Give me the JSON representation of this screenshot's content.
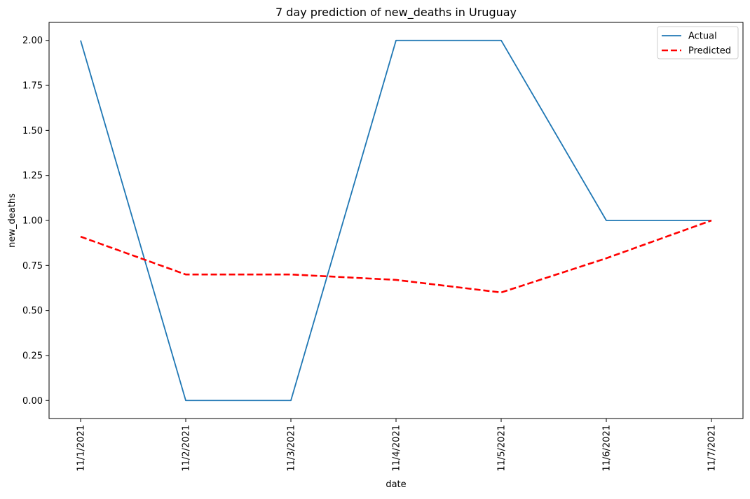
{
  "chart_data": {
    "type": "line",
    "title": "7 day prediction of new_deaths in Uruguay",
    "xlabel": "date",
    "ylabel": "new_deaths",
    "categories": [
      "11/1/2021",
      "11/2/2021",
      "11/3/2021",
      "11/4/2021",
      "11/5/2021",
      "11/6/2021",
      "11/7/2021"
    ],
    "series": [
      {
        "name": "Actual",
        "values": [
          2,
          0,
          0,
          2,
          2,
          1,
          1
        ],
        "color": "#1f77b4",
        "style": "solid"
      },
      {
        "name": "Predicted",
        "values": [
          0.91,
          0.7,
          0.7,
          0.67,
          0.6,
          0.79,
          1.0
        ],
        "color": "#ff0000",
        "style": "dashed"
      }
    ],
    "yticks": [
      "0.00",
      "0.25",
      "0.50",
      "0.75",
      "1.00",
      "1.25",
      "1.50",
      "1.75",
      "2.00"
    ],
    "ylim": [
      -0.1,
      2.1
    ],
    "grid": false,
    "legend_position": "top-right"
  }
}
